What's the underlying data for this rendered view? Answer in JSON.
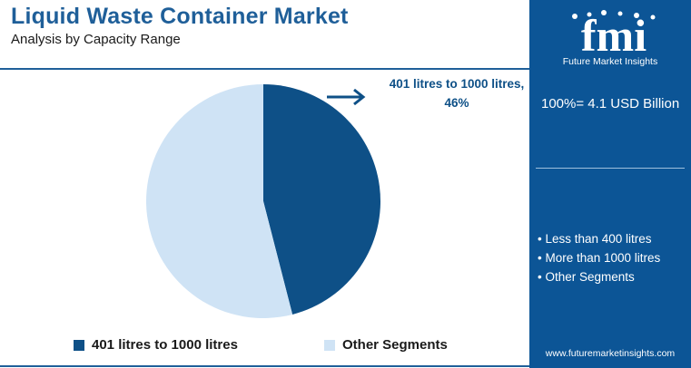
{
  "header": {
    "title": "Liquid Waste Container Market",
    "subtitle": "Analysis by Capacity Range"
  },
  "callout": {
    "text": "401 litres to 1000 litres, 46%"
  },
  "colors": {
    "accent": "#1f5f99",
    "slice_primary": "#0e5087",
    "slice_secondary": "#cfe3f5",
    "sidebar_bg": "#0c5596"
  },
  "legend": {
    "items": [
      {
        "label": "401 litres to 1000 litres",
        "color": "#0e5087"
      },
      {
        "label": "Other Segments",
        "color": "#cfe3f5"
      }
    ]
  },
  "sidebar": {
    "brand": "fmi",
    "brand_sub": "Future Market Insights",
    "total": "100%= 4.1 USD Billion",
    "segments": [
      "Less than 400 litres",
      "More than 1000 litres",
      "Other Segments"
    ],
    "website": "www.futuremarketinsights.com"
  },
  "chart_data": {
    "type": "pie",
    "title": "Liquid Waste Container Market",
    "subtitle": "Analysis by Capacity Range",
    "slices": [
      {
        "label": "401 litres to 1000 litres",
        "value": 46,
        "color": "#0e5087"
      },
      {
        "label": "Other Segments",
        "value": 54,
        "color": "#cfe3f5"
      }
    ],
    "legend_position": "bottom",
    "annotation": "401 litres to 1000 litres, 46%"
  }
}
